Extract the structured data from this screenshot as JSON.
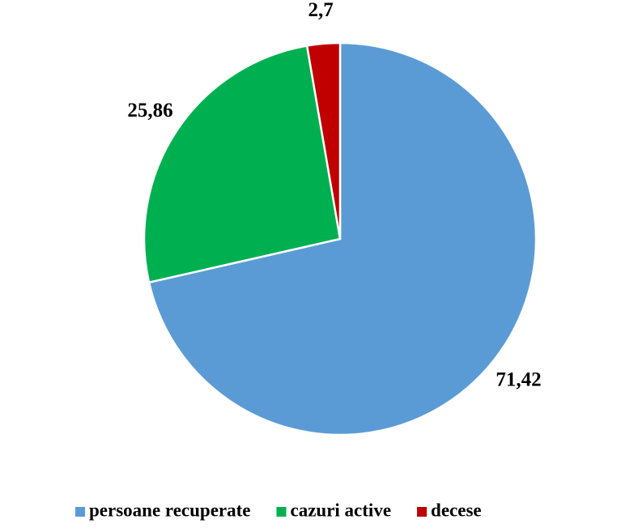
{
  "chart_data": {
    "type": "pie",
    "categories": [
      "persoane recuperate",
      "cazuri active",
      "decese"
    ],
    "values": [
      71.42,
      25.86,
      2.7
    ],
    "value_labels": [
      "71,42",
      "25,86",
      "2,7"
    ],
    "colors": [
      "#5b9bd5",
      "#00b050",
      "#c00000"
    ],
    "legend": "bottom"
  }
}
